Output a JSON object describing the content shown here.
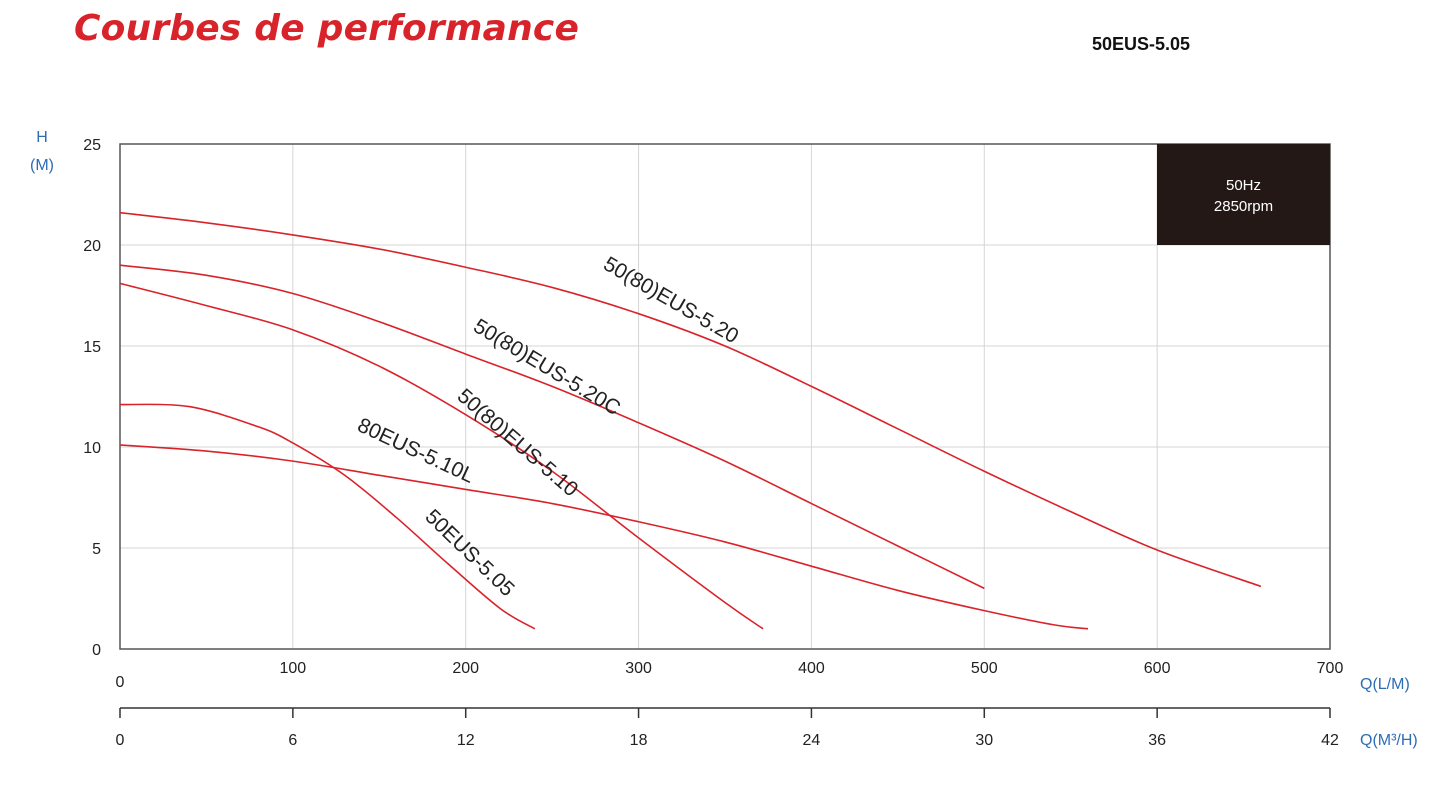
{
  "header": {
    "title": "Courbes de performance",
    "model": "50EUS-5.05"
  },
  "chart_data": {
    "type": "line",
    "title": "Courbes de performance",
    "info_box": {
      "line1": "50Hz",
      "line2": "2850rpm"
    },
    "ylabel_line1": "H",
    "ylabel_line2": "(M)",
    "xlabel_lpm": "Q(L/M)",
    "xlabel_m3h": "Q(M³/H)",
    "xlim": [
      0,
      700
    ],
    "ylim": [
      0,
      25
    ],
    "x_ticks": [
      0,
      100,
      200,
      300,
      400,
      500,
      600,
      700
    ],
    "y_ticks": [
      0,
      5,
      10,
      15,
      20,
      25
    ],
    "x2_ticks": [
      0,
      6,
      12,
      18,
      24,
      30,
      36,
      42
    ],
    "grid": true,
    "colors": {
      "curve": "#d9232a",
      "axis_label": "#2e6db4",
      "info_box": "#231815"
    },
    "series": [
      {
        "name": "50(80)EUS-5.20",
        "x": [
          0,
          50,
          100,
          150,
          200,
          250,
          300,
          350,
          400,
          450,
          500,
          550,
          600,
          660
        ],
        "y": [
          21.6,
          21.1,
          20.5,
          19.8,
          18.9,
          17.9,
          16.6,
          15.0,
          13.0,
          10.9,
          8.8,
          6.8,
          4.9,
          3.1
        ]
      },
      {
        "name": "50(80)EUS-5.20C",
        "x": [
          0,
          50,
          100,
          150,
          200,
          250,
          300,
          350,
          400,
          450,
          500
        ],
        "y": [
          19.0,
          18.5,
          17.6,
          16.2,
          14.6,
          13.0,
          11.2,
          9.3,
          7.2,
          5.1,
          3.0
        ]
      },
      {
        "name": "50(80)EUS-5.10",
        "x": [
          0,
          50,
          100,
          150,
          200,
          250,
          300,
          350,
          372
        ],
        "y": [
          18.1,
          17.0,
          15.8,
          14.0,
          11.6,
          8.8,
          5.5,
          2.3,
          1.0
        ]
      },
      {
        "name": "80EUS-5.10L",
        "x": [
          0,
          50,
          100,
          150,
          200,
          250,
          300,
          350,
          400,
          450,
          500,
          540,
          560
        ],
        "y": [
          10.1,
          9.8,
          9.3,
          8.6,
          7.9,
          7.2,
          6.3,
          5.3,
          4.1,
          2.9,
          1.9,
          1.2,
          1.0
        ]
      },
      {
        "name": "50EUS-5.05",
        "x": [
          0,
          40,
          80,
          100,
          130,
          160,
          190,
          220,
          240
        ],
        "y": [
          12.1,
          12.0,
          11.0,
          10.2,
          8.6,
          6.5,
          4.2,
          2.0,
          1.0
        ]
      }
    ]
  }
}
